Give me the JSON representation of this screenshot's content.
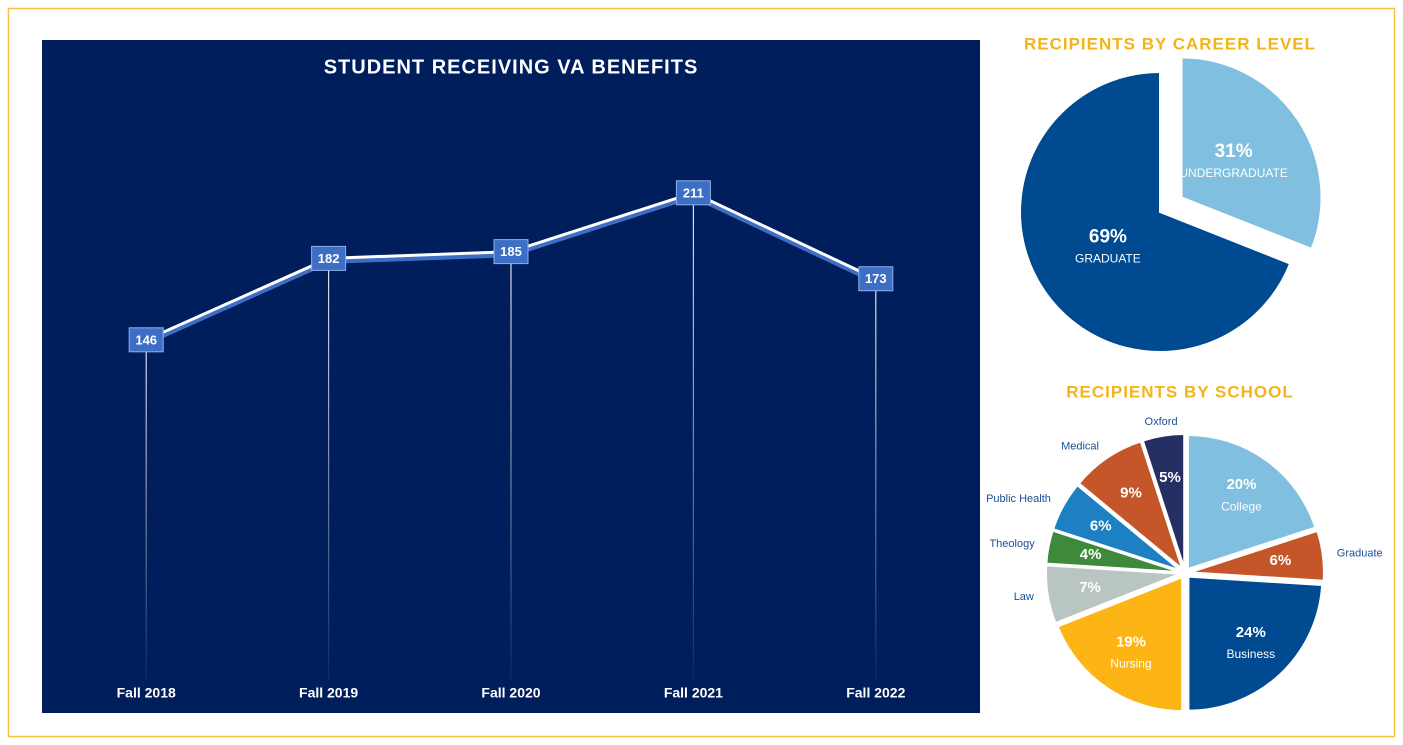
{
  "chart_data": [
    {
      "type": "line",
      "title": "STUDENT RECEIVING VA BENEFITS",
      "categories": [
        "Fall 2018",
        "Fall 2019",
        "Fall 2020",
        "Fall 2021",
        "Fall 2022"
      ],
      "values": [
        146,
        182,
        185,
        211,
        173
      ],
      "color": "#ffffff",
      "label_color": "#3d6ec6",
      "ylim": [
        0,
        260
      ]
    },
    {
      "type": "pie",
      "title": "RECIPIENTS BY CAREER LEVEL",
      "categories": [
        "UNDERGRADUATE",
        "GRADUATE"
      ],
      "values": [
        31,
        69
      ],
      "value_labels": [
        "31%",
        "69%"
      ],
      "colors": [
        "#80bfdf",
        "#004a91"
      ],
      "explode": [
        1,
        0
      ]
    },
    {
      "type": "pie",
      "title": "RECIPIENTS BY SCHOOL",
      "categories": [
        "College",
        "Graduate",
        "Business",
        "Nursing",
        "Law",
        "Theology",
        "Public Health",
        "Medical",
        "Oxford"
      ],
      "values": [
        20,
        6,
        24,
        19,
        7,
        4,
        6,
        9,
        5
      ],
      "value_labels": [
        "20%",
        "6%",
        "24%",
        "19%",
        "7%",
        "4%",
        "6%",
        "9%",
        "5%"
      ],
      "colors": [
        "#80bfdf",
        "#c4562a",
        "#004a91",
        "#fdb515",
        "#b9c5c2",
        "#3e8a3c",
        "#1c80c2",
        "#c4562a",
        "#252f62"
      ]
    }
  ]
}
